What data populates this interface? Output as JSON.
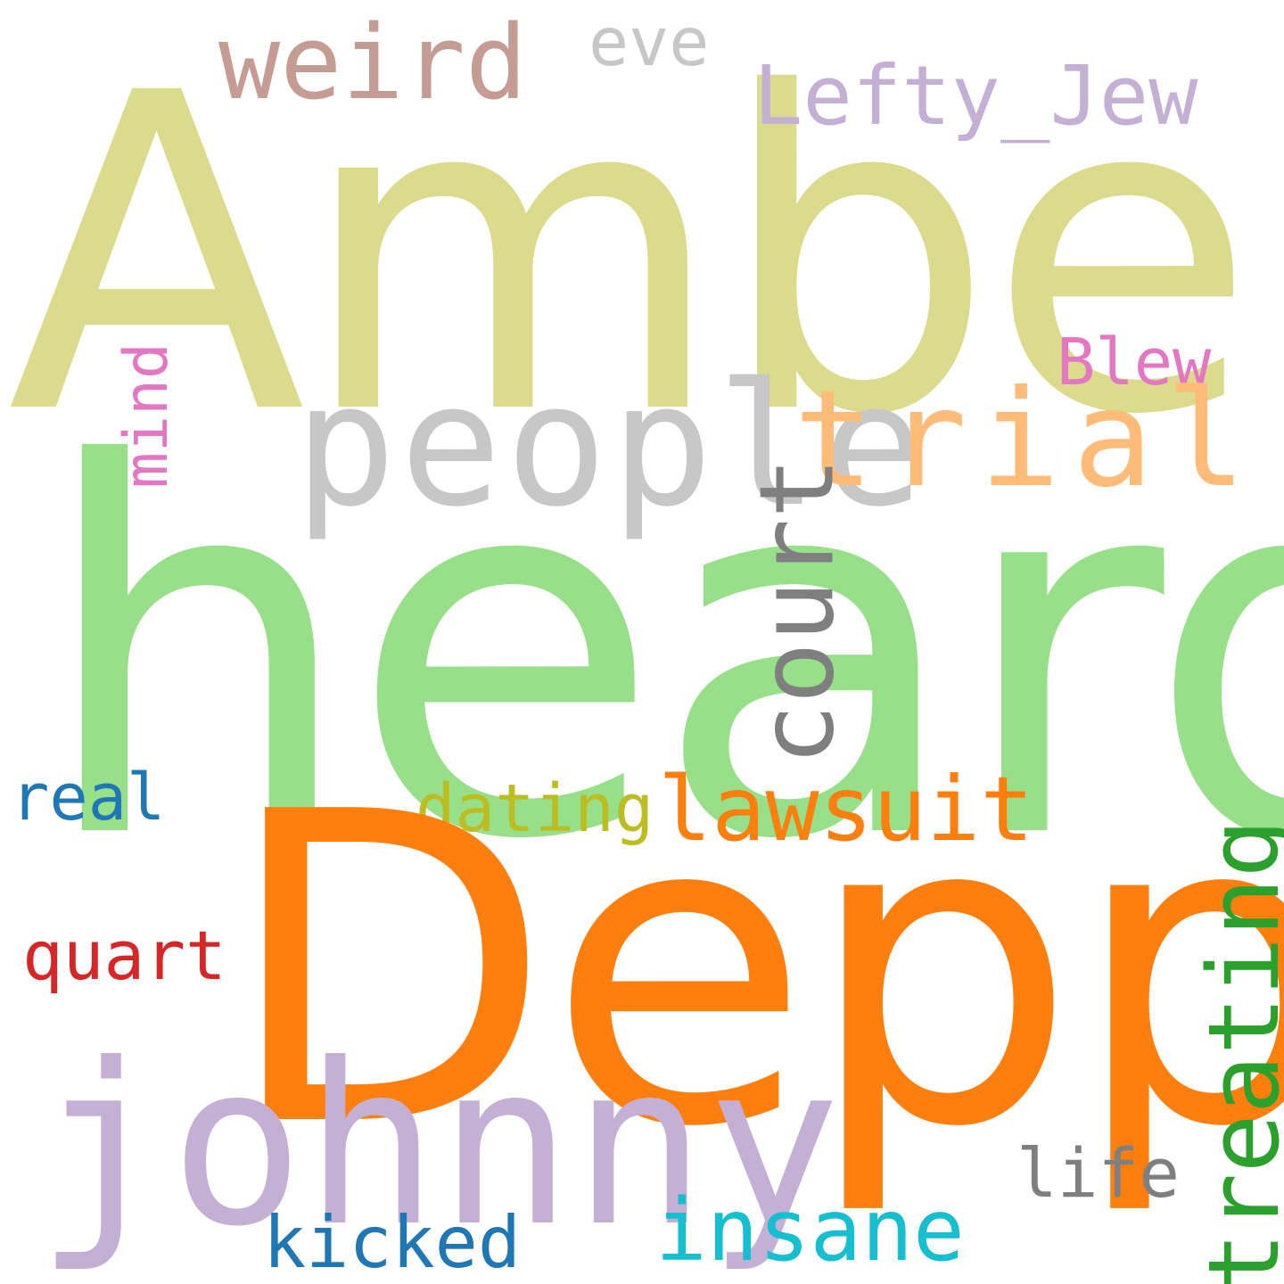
{
  "words": {
    "amber": {
      "text": "Amber",
      "color": "#dbdb8d"
    },
    "heard": {
      "text": "heard",
      "color": "#98df8a"
    },
    "depp": {
      "text": "Depp",
      "color": "#ff7f0e"
    },
    "johnny": {
      "text": "johnny",
      "color": "#c5b0d5"
    },
    "people": {
      "text": "people",
      "color": "#c7c7c7"
    },
    "trial": {
      "text": "trial",
      "color": "#ffbb78"
    },
    "court": {
      "text": "court",
      "color": "#7f7f7f"
    },
    "weird": {
      "text": "weird",
      "color": "#c49c94"
    },
    "eve": {
      "text": "eve",
      "color": "#c7c7c7"
    },
    "lefty": {
      "text": "Lefty_Jew",
      "color": "#c5b0d5"
    },
    "blew": {
      "text": "Blew",
      "color": "#e377c2"
    },
    "mind": {
      "text": "mind",
      "color": "#e377c2"
    },
    "real": {
      "text": "real",
      "color": "#1f77b4"
    },
    "dating": {
      "text": "dating",
      "color": "#bcbd22"
    },
    "lawsuit": {
      "text": "lawsuit",
      "color": "#ff7f0e"
    },
    "treating": {
      "text": "treating",
      "color": "#2ca02c"
    },
    "quart": {
      "text": "quart",
      "color": "#d62728"
    },
    "life": {
      "text": "life",
      "color": "#7f7f7f"
    },
    "insane": {
      "text": "insane",
      "color": "#17becf"
    },
    "kicked": {
      "text": "kicked",
      "color": "#1f77b4"
    }
  }
}
